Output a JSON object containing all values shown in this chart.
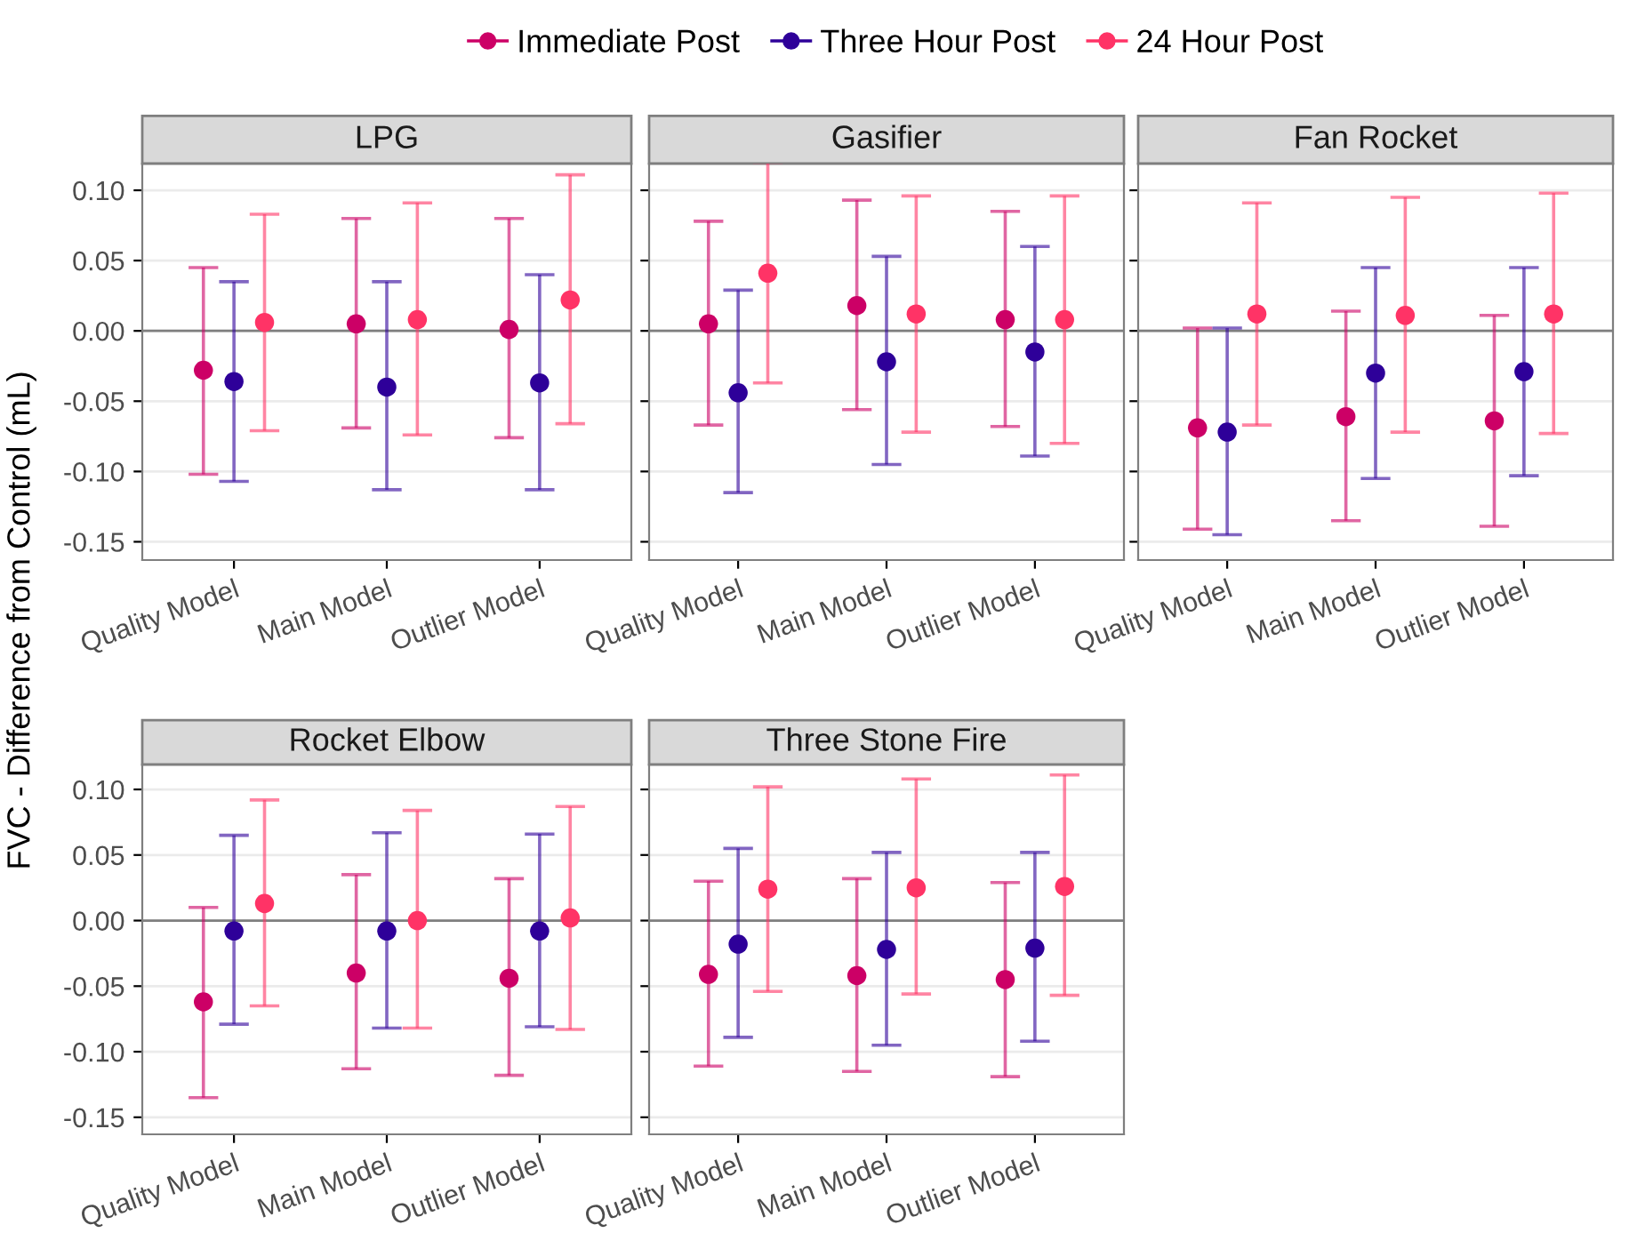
{
  "chart_data": [
    {
      "type": "scatter",
      "title": "LPG",
      "ylabel": "FVC - Difference from Control (mL)",
      "legend": "top",
      "grid": "y",
      "marker": "circle",
      "categories": [
        "Quality Model",
        "Main Model",
        "Outlier Model"
      ],
      "ylim": [
        -0.163,
        0.119
      ],
      "yticks": [
        {
          "value": -0.15,
          "label": "-0.15"
        },
        {
          "value": -0.1,
          "label": "-0.10"
        },
        {
          "value": -0.05,
          "label": "-0.05"
        },
        {
          "value": 0,
          "label": "0.00"
        },
        {
          "value": 0.05,
          "label": "0.05"
        },
        {
          "value": 0.1,
          "label": "0.10"
        }
      ],
      "ref_lines": [
        {
          "axis": "y",
          "value": 0,
          "color": "#7f7f7f"
        }
      ],
      "series": [
        {
          "name": "Immediate Post",
          "color": "#cc0066",
          "values": [
            -0.028,
            0.005,
            0.001
          ],
          "errors": [
            [
              -0.102,
              0.045
            ],
            [
              -0.069,
              0.08
            ],
            [
              -0.076,
              0.08
            ]
          ]
        },
        {
          "name": "Three Hour Post",
          "color": "#2e0099",
          "values": [
            -0.036,
            -0.04,
            -0.037
          ],
          "errors": [
            [
              -0.107,
              0.035
            ],
            [
              -0.113,
              0.035
            ],
            [
              -0.113,
              0.04
            ]
          ]
        },
        {
          "name": "24 Hour Post",
          "color": "#ff3366",
          "values": [
            0.006,
            0.008,
            0.022
          ],
          "errors": [
            [
              -0.071,
              0.083
            ],
            [
              -0.074,
              0.091
            ],
            [
              -0.066,
              0.111
            ]
          ]
        }
      ]
    },
    {
      "type": "scatter",
      "title": "Gasifier",
      "tick_labels": "x",
      "grid": "y",
      "marker": "circle",
      "categories": [
        "Quality Model",
        "Main Model",
        "Outlier Model"
      ],
      "ylim": [
        -0.163,
        0.119
      ],
      "yticks": [
        -0.15,
        -0.1,
        -0.05,
        0.0,
        0.05,
        0.1
      ],
      "ref_lines": [
        {
          "axis": "y",
          "value": 0,
          "color": "#7f7f7f"
        }
      ],
      "series": [
        {
          "color": "#cc0066",
          "values": [
            0.005,
            0.018,
            0.008
          ],
          "errors": [
            [
              -0.067,
              0.078
            ],
            [
              -0.056,
              0.093
            ],
            [
              -0.068,
              0.085
            ]
          ]
        },
        {
          "color": "#2e0099",
          "values": [
            -0.044,
            -0.022,
            -0.015
          ],
          "errors": [
            [
              -0.115,
              0.029
            ],
            [
              -0.095,
              0.053
            ],
            [
              -0.089,
              0.06
            ]
          ]
        },
        {
          "color": "#ff3366",
          "values": [
            0.041,
            0.012,
            0.008
          ],
          "errors": [
            [
              -0.037,
              0.12
            ],
            [
              -0.072,
              0.096
            ],
            [
              -0.08,
              0.096
            ]
          ]
        }
      ]
    },
    {
      "type": "scatter",
      "title": "Fan Rocket",
      "tick_labels": "x",
      "grid": "y",
      "marker": "circle",
      "categories": [
        "Quality Model",
        "Main Model",
        "Outlier Model"
      ],
      "ylim": [
        -0.163,
        0.119
      ],
      "yticks": [
        -0.15,
        -0.1,
        -0.05,
        0.0,
        0.05,
        0.1
      ],
      "ref_lines": [
        {
          "axis": "y",
          "value": 0,
          "color": "#7f7f7f"
        }
      ],
      "series": [
        {
          "color": "#cc0066",
          "values": [
            -0.069,
            -0.061,
            -0.064
          ],
          "errors": [
            [
              -0.141,
              0.002
            ],
            [
              -0.135,
              0.014
            ],
            [
              -0.139,
              0.011
            ]
          ]
        },
        {
          "color": "#2e0099",
          "values": [
            -0.072,
            -0.03,
            -0.029
          ],
          "errors": [
            [
              -0.145,
              0.002
            ],
            [
              -0.105,
              0.045
            ],
            [
              -0.103,
              0.045
            ]
          ]
        },
        {
          "color": "#ff3366",
          "values": [
            0.012,
            0.011,
            0.012
          ],
          "errors": [
            [
              -0.067,
              0.091
            ],
            [
              -0.072,
              0.095
            ],
            [
              -0.073,
              0.098
            ]
          ]
        }
      ]
    },
    {
      "type": "scatter",
      "title": "Rocket Elbow",
      "grid": "y",
      "marker": "circle",
      "categories": [
        "Quality Model",
        "Main Model",
        "Outlier Model"
      ],
      "ylim": [
        -0.163,
        0.119
      ],
      "yticks": [
        {
          "value": -0.15,
          "label": "-0.15"
        },
        {
          "value": -0.1,
          "label": "-0.10"
        },
        {
          "value": -0.05,
          "label": "-0.05"
        },
        {
          "value": 0,
          "label": "0.00"
        },
        {
          "value": 0.05,
          "label": "0.05"
        },
        {
          "value": 0.1,
          "label": "0.10"
        }
      ],
      "ref_lines": [
        {
          "axis": "y",
          "value": 0,
          "color": "#7f7f7f"
        }
      ],
      "series": [
        {
          "color": "#cc0066",
          "values": [
            -0.062,
            -0.04,
            -0.044
          ],
          "errors": [
            [
              -0.135,
              0.01
            ],
            [
              -0.113,
              0.035
            ],
            [
              -0.118,
              0.032
            ]
          ]
        },
        {
          "color": "#2e0099",
          "values": [
            -0.008,
            -0.008,
            -0.008
          ],
          "errors": [
            [
              -0.079,
              0.065
            ],
            [
              -0.082,
              0.067
            ],
            [
              -0.081,
              0.066
            ]
          ]
        },
        {
          "color": "#ff3366",
          "values": [
            0.013,
            0.0,
            0.002
          ],
          "errors": [
            [
              -0.065,
              0.092
            ],
            [
              -0.082,
              0.084
            ],
            [
              -0.083,
              0.087
            ]
          ]
        }
      ]
    },
    {
      "type": "scatter",
      "title": "Three Stone Fire",
      "tick_labels": "x",
      "grid": "y",
      "marker": "circle",
      "categories": [
        "Quality Model",
        "Main Model",
        "Outlier Model"
      ],
      "ylim": [
        -0.163,
        0.119
      ],
      "yticks": [
        -0.15,
        -0.1,
        -0.05,
        0.0,
        0.05,
        0.1
      ],
      "ref_lines": [
        {
          "axis": "y",
          "value": 0,
          "color": "#7f7f7f"
        }
      ],
      "series": [
        {
          "color": "#cc0066",
          "values": [
            -0.041,
            -0.042,
            -0.045
          ],
          "errors": [
            [
              -0.111,
              0.03
            ],
            [
              -0.115,
              0.032
            ],
            [
              -0.119,
              0.029
            ]
          ]
        },
        {
          "color": "#2e0099",
          "values": [
            -0.018,
            -0.022,
            -0.021
          ],
          "errors": [
            [
              -0.089,
              0.055
            ],
            [
              -0.095,
              0.052
            ],
            [
              -0.092,
              0.052
            ]
          ]
        },
        {
          "color": "#ff3366",
          "values": [
            0.024,
            0.025,
            0.026
          ],
          "errors": [
            [
              -0.054,
              0.102
            ],
            [
              -0.056,
              0.108
            ],
            [
              -0.057,
              0.111
            ]
          ]
        }
      ]
    }
  ]
}
